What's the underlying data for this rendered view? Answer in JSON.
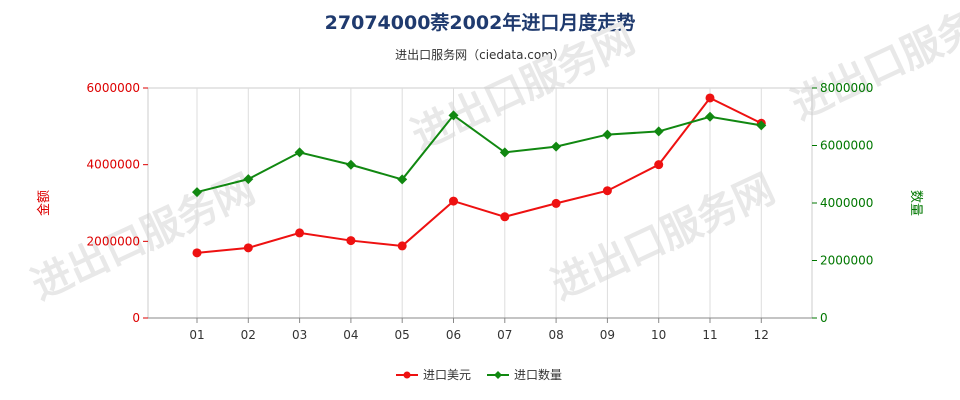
{
  "chart_data": {
    "type": "line",
    "title": "27074000萘2002年进口月度走势",
    "subtitle": "进出口服务网（ciedata.com）",
    "categories": [
      "01",
      "02",
      "03",
      "04",
      "05",
      "06",
      "07",
      "08",
      "09",
      "10",
      "11",
      "12"
    ],
    "left_axis": {
      "label": "金额",
      "min": 0,
      "max": 6000000,
      "ticks": [
        0,
        2000000,
        4000000,
        6000000
      ],
      "tick_labels": [
        "0",
        "2000000",
        "4000000",
        "6000000"
      ],
      "color": "#dd0000"
    },
    "right_axis": {
      "label": "数量",
      "min": 0,
      "max": 8000000,
      "ticks": [
        0,
        2000000,
        4000000,
        6000000,
        8000000
      ],
      "tick_labels": [
        "0",
        "2000000",
        "4000000",
        "6000000",
        "8000000"
      ],
      "color": "#007700"
    },
    "series": [
      {
        "name": "进口美元",
        "axis": "left",
        "color": "#ee1111",
        "marker": "circle",
        "values": [
          1700000,
          1830000,
          2220000,
          2020000,
          1880000,
          3050000,
          2640000,
          2990000,
          3320000,
          4000000,
          5740000,
          5080000
        ]
      },
      {
        "name": "进口数量",
        "axis": "right",
        "color": "#118811",
        "marker": "diamond",
        "values": [
          4380000,
          4830000,
          5760000,
          5330000,
          4820000,
          7050000,
          5760000,
          5960000,
          6380000,
          6490000,
          7000000,
          6700000
        ]
      }
    ],
    "grid": "vertical",
    "legend_position": "bottom-center",
    "watermark": "进出口服务网"
  }
}
